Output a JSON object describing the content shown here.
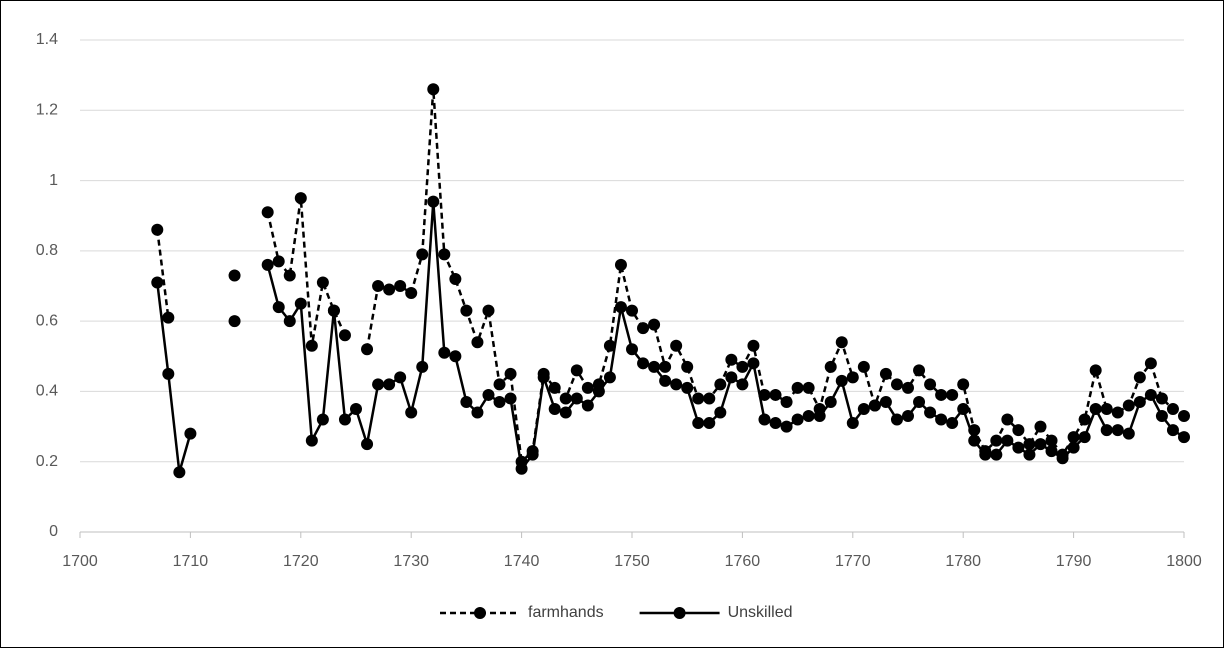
{
  "chart_data": {
    "type": "line",
    "x": [
      1707,
      1708,
      1709,
      1710,
      1711,
      1712,
      1713,
      1714,
      1715,
      1716,
      1717,
      1718,
      1719,
      1720,
      1721,
      1722,
      1723,
      1724,
      1725,
      1726,
      1727,
      1728,
      1729,
      1730,
      1731,
      1732,
      1733,
      1734,
      1735,
      1736,
      1737,
      1738,
      1739,
      1740,
      1741,
      1742,
      1743,
      1744,
      1745,
      1746,
      1747,
      1748,
      1749,
      1750,
      1751,
      1752,
      1753,
      1754,
      1755,
      1756,
      1757,
      1758,
      1759,
      1760,
      1761,
      1762,
      1763,
      1764,
      1765,
      1766,
      1767,
      1768,
      1769,
      1770,
      1771,
      1772,
      1773,
      1774,
      1775,
      1776,
      1777,
      1778,
      1779,
      1780,
      1781,
      1782,
      1783,
      1784,
      1785,
      1786,
      1787,
      1788,
      1789,
      1790,
      1791,
      1792,
      1793,
      1794,
      1795,
      1796,
      1797,
      1798,
      1799,
      1800
    ],
    "series": [
      {
        "name": "farmhands",
        "color": "#000000",
        "dash": true,
        "values": [
          0.86,
          0.61,
          null,
          null,
          null,
          null,
          null,
          0.73,
          null,
          null,
          0.91,
          0.77,
          0.73,
          0.95,
          0.53,
          0.71,
          0.63,
          0.56,
          null,
          0.52,
          0.7,
          0.69,
          0.7,
          0.68,
          0.79,
          1.26,
          0.79,
          0.72,
          0.63,
          0.54,
          0.63,
          0.42,
          0.45,
          0.2,
          0.23,
          0.45,
          0.41,
          0.38,
          0.46,
          0.41,
          0.42,
          0.53,
          0.76,
          0.63,
          0.58,
          0.59,
          0.47,
          0.53,
          0.47,
          0.38,
          0.38,
          0.42,
          0.49,
          0.47,
          0.53,
          0.39,
          0.39,
          0.37,
          0.41,
          0.41,
          0.35,
          0.47,
          0.54,
          0.44,
          0.47,
          0.36,
          0.45,
          0.42,
          0.41,
          0.46,
          0.42,
          0.39,
          0.39,
          0.42,
          0.29,
          0.23,
          0.26,
          0.32,
          0.29,
          0.25,
          0.3,
          0.26,
          0.22,
          0.27,
          0.32,
          0.46,
          0.35,
          0.34,
          0.36,
          0.44,
          0.48,
          0.38,
          0.35,
          0.33
        ]
      },
      {
        "name": "Unskilled",
        "color": "#000000",
        "dash": false,
        "values": [
          0.71,
          0.45,
          0.17,
          0.28,
          null,
          null,
          null,
          0.6,
          null,
          null,
          0.76,
          0.64,
          0.6,
          0.65,
          0.26,
          0.32,
          0.63,
          0.32,
          0.35,
          0.25,
          0.42,
          0.42,
          0.44,
          0.34,
          0.47,
          0.94,
          0.51,
          0.5,
          0.37,
          0.34,
          0.39,
          0.37,
          0.38,
          0.18,
          0.22,
          0.44,
          0.35,
          0.34,
          0.38,
          0.36,
          0.4,
          0.44,
          0.64,
          0.52,
          0.48,
          0.47,
          0.43,
          0.42,
          0.41,
          0.31,
          0.31,
          0.34,
          0.44,
          0.42,
          0.48,
          0.32,
          0.31,
          0.3,
          0.32,
          0.33,
          0.33,
          0.37,
          0.43,
          0.31,
          0.35,
          0.36,
          0.37,
          0.32,
          0.33,
          0.37,
          0.34,
          0.32,
          0.31,
          0.35,
          0.26,
          0.22,
          0.22,
          0.26,
          0.24,
          0.22,
          0.25,
          0.23,
          0.21,
          0.24,
          0.27,
          0.35,
          0.29,
          0.29,
          0.28,
          0.37,
          0.39,
          0.33,
          0.29,
          0.27
        ]
      }
    ],
    "xlim": [
      1700,
      1800
    ],
    "xticks": [
      1700,
      1710,
      1720,
      1730,
      1740,
      1750,
      1760,
      1770,
      1780,
      1790,
      1800
    ],
    "ylim": [
      0,
      1.4
    ],
    "yticks": [
      0,
      0.2,
      0.4,
      0.6,
      0.8,
      1,
      1.2,
      1.4
    ],
    "grid": true,
    "legend": "bottom"
  }
}
